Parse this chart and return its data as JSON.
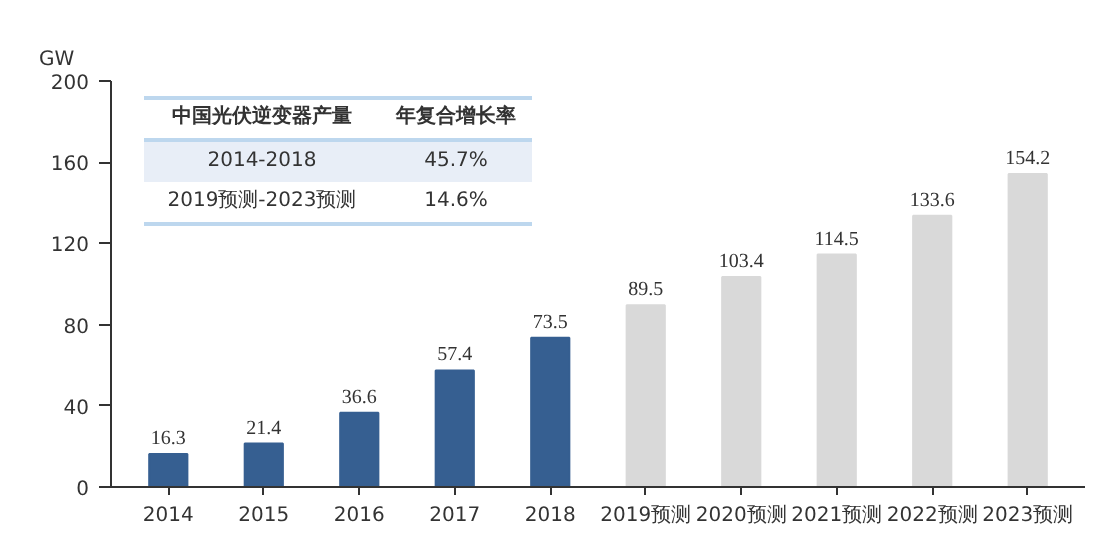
{
  "chart_data": {
    "type": "bar",
    "ylabel": "GW",
    "categories": [
      "2014",
      "2015",
      "2016",
      "2017",
      "2018",
      "2019预测",
      "2020预测",
      "2021预测",
      "2022预测",
      "2023预测"
    ],
    "values": [
      16.3,
      21.4,
      36.6,
      57.4,
      73.5,
      89.5,
      103.4,
      114.5,
      133.6,
      154.2
    ],
    "colors": [
      "#365f91",
      "#365f91",
      "#365f91",
      "#365f91",
      "#365f91",
      "#d9d9d9",
      "#d9d9d9",
      "#d9d9d9",
      "#d9d9d9",
      "#d9d9d9"
    ],
    "ylim": [
      0,
      200
    ],
    "yticks": [
      0,
      40,
      80,
      120,
      160,
      200
    ],
    "data_labels": true,
    "grid": false,
    "annotations": [
      "中国光伏逆变器产量",
      "年复合增长率",
      "2014-2018",
      "45.7%",
      "2019预测-2023预测",
      "14.6%"
    ]
  }
}
